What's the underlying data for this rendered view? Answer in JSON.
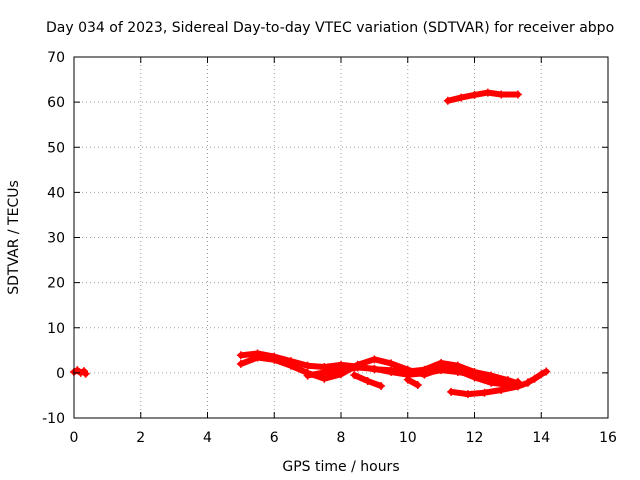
{
  "chart_data": {
    "type": "scatter",
    "title": "Day 034 of 2023, Sidereal Day-to-day VTEC variation (SDTVAR) for receiver abpo",
    "xlabel": "GPS time / hours",
    "ylabel": "SDTVAR / TECUs",
    "xlim": [
      0,
      16
    ],
    "ylim": [
      -10,
      70
    ],
    "xticks": [
      0,
      2,
      4,
      6,
      8,
      10,
      12,
      14,
      16
    ],
    "yticks": [
      -10,
      0,
      10,
      20,
      30,
      40,
      50,
      60,
      70
    ],
    "grid": true,
    "legend": "none",
    "series": [
      {
        "color": "#ff0000",
        "segments": [
          [
            [
              0.0,
              0.2
            ],
            [
              0.1,
              0.6
            ],
            [
              0.2,
              0.0
            ],
            [
              0.3,
              0.4
            ],
            [
              0.35,
              -0.2
            ]
          ],
          [
            [
              11.2,
              60.3
            ],
            [
              11.6,
              61.0
            ],
            [
              12.0,
              61.6
            ],
            [
              12.4,
              62.1
            ],
            [
              12.8,
              61.7
            ],
            [
              13.3,
              61.7
            ]
          ],
          [
            [
              5.0,
              2.0
            ],
            [
              5.5,
              3.4
            ],
            [
              6.0,
              2.9
            ],
            [
              6.5,
              1.6
            ],
            [
              7.0,
              0.0
            ],
            [
              7.5,
              -1.3
            ],
            [
              8.0,
              -0.3
            ],
            [
              8.5,
              1.8
            ],
            [
              9.0,
              3.0
            ],
            [
              9.5,
              2.1
            ],
            [
              10.0,
              0.7
            ],
            [
              10.5,
              -0.4
            ],
            [
              11.0,
              0.9
            ],
            [
              11.5,
              0.5
            ],
            [
              12.0,
              -1.0
            ],
            [
              12.5,
              -2.2
            ],
            [
              13.0,
              -2.6
            ],
            [
              13.3,
              -2.0
            ]
          ],
          [
            [
              5.0,
              3.9
            ],
            [
              5.5,
              4.3
            ],
            [
              6.0,
              3.6
            ],
            [
              6.5,
              2.6
            ],
            [
              7.0,
              1.6
            ],
            [
              7.5,
              1.3
            ],
            [
              8.0,
              1.8
            ],
            [
              8.5,
              1.4
            ],
            [
              9.0,
              0.8
            ],
            [
              9.5,
              0.6
            ],
            [
              10.0,
              0.3
            ],
            [
              10.5,
              0.7
            ],
            [
              11.0,
              2.2
            ],
            [
              11.5,
              1.6
            ],
            [
              12.0,
              0.2
            ],
            [
              12.5,
              -0.6
            ],
            [
              13.0,
              -1.6
            ],
            [
              13.3,
              -2.3
            ]
          ],
          [
            [
              7.0,
              -0.6
            ],
            [
              7.5,
              0.1
            ],
            [
              8.0,
              0.6
            ],
            [
              8.5,
              1.2
            ],
            [
              9.0,
              0.9
            ],
            [
              9.5,
              0.2
            ],
            [
              10.0,
              -0.4
            ],
            [
              10.5,
              -0.1
            ],
            [
              11.0,
              0.6
            ],
            [
              11.5,
              0.2
            ],
            [
              12.0,
              -0.4
            ],
            [
              12.5,
              -1.1
            ],
            [
              13.0,
              -1.8
            ]
          ],
          [
            [
              8.4,
              -0.5
            ],
            [
              8.8,
              -1.8
            ],
            [
              9.2,
              -2.9
            ]
          ],
          [
            [
              10.0,
              -1.5
            ],
            [
              10.3,
              -2.7
            ]
          ],
          [
            [
              11.3,
              -4.2
            ],
            [
              11.8,
              -4.7
            ],
            [
              12.3,
              -4.4
            ],
            [
              12.8,
              -3.8
            ],
            [
              13.3,
              -3.0
            ],
            [
              13.6,
              -2.2
            ]
          ],
          [
            [
              13.6,
              -2.1
            ],
            [
              13.8,
              -1.3
            ],
            [
              14.0,
              -0.3
            ],
            [
              14.15,
              0.3
            ]
          ]
        ]
      }
    ]
  }
}
